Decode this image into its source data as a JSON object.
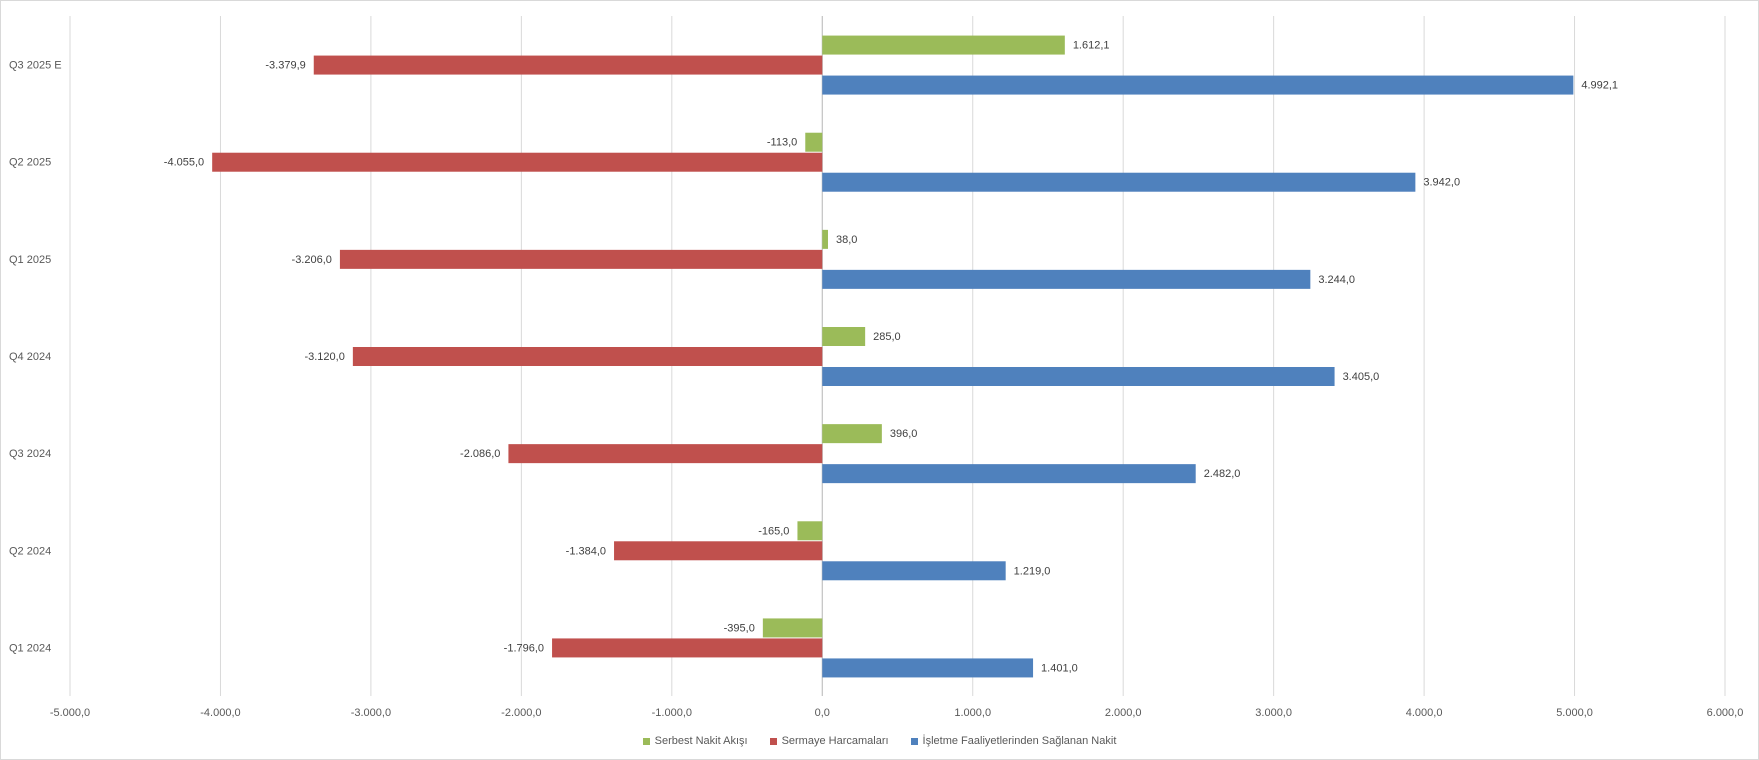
{
  "chart_data": {
    "type": "bar",
    "orientation": "horizontal",
    "categories": [
      "Q3 2025 E",
      "Q2 2025",
      "Q1 2025",
      "Q4 2024",
      "Q3 2024",
      "Q2 2024",
      "Q1 2024"
    ],
    "series": [
      {
        "name": "Serbest Nakit Akışı",
        "color": "#9bbb59",
        "values": [
          1612.1,
          -113.0,
          38.0,
          285.0,
          396.0,
          -165.0,
          -395.0
        ],
        "labels": [
          "1.612,1",
          "-113,0",
          "38,0",
          "285,0",
          "396,0",
          "-165,0",
          "-395,0"
        ]
      },
      {
        "name": "Sermaye Harcamaları",
        "color": "#c0504d",
        "values": [
          -3379.9,
          -4055.0,
          -3206.0,
          -3120.0,
          -2086.0,
          -1384.0,
          -1796.0
        ],
        "labels": [
          "-3.379,9",
          "-4.055,0",
          "-3.206,0",
          "-3.120,0",
          "-2.086,0",
          "-1.384,0",
          "-1.796,0"
        ]
      },
      {
        "name": "İşletme Faaliyetlerinden Sağlanan Nakit",
        "color": "#4f81bd",
        "values": [
          4992.1,
          3942.0,
          3244.0,
          3405.0,
          2482.0,
          1219.0,
          1401.0
        ],
        "labels": [
          "4.992,1",
          "3.942,0",
          "3.244,0",
          "3.405,0",
          "2.482,0",
          "1.219,0",
          "1.401,0"
        ]
      }
    ],
    "xlim": [
      -5000,
      6000
    ],
    "xticks": [
      -5000,
      -4000,
      -3000,
      -2000,
      -1000,
      0,
      1000,
      2000,
      3000,
      4000,
      5000,
      6000
    ],
    "xtick_labels": [
      "-5.000,0",
      "-4.000,0",
      "-3.000,0",
      "-2.000,0",
      "-1.000,0",
      "0,0",
      "1.000,0",
      "2.000,0",
      "3.000,0",
      "4.000,0",
      "5.000,0",
      "6.000,0"
    ],
    "grid": true,
    "legend_position": "bottom",
    "title": "",
    "xlabel": "",
    "ylabel": ""
  }
}
